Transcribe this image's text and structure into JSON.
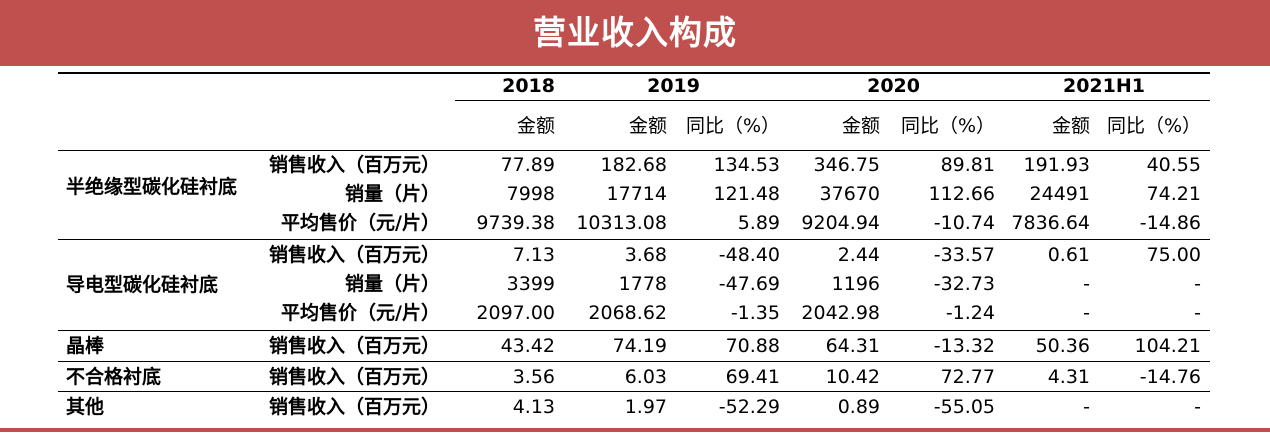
{
  "title": "营业收入构成",
  "years": [
    "2018",
    "2019",
    "2020",
    "2021H1"
  ],
  "sub_headers": {
    "amount": "金额",
    "yoy": "同比（%）"
  },
  "groups": [
    {
      "name": "半绝缘型碳化硅衬底",
      "rows": [
        {
          "metric": "销售收入（百万元）",
          "v2018": "77.89",
          "v2019": "182.68",
          "yoy2019": "134.53",
          "v2020": "346.75",
          "yoy2020": "89.81",
          "v2021": "191.93",
          "yoy2021": "40.55"
        },
        {
          "metric": "销量（片）",
          "v2018": "7998",
          "v2019": "17714",
          "yoy2019": "121.48",
          "v2020": "37670",
          "yoy2020": "112.66",
          "v2021": "24491",
          "yoy2021": "74.21"
        },
        {
          "metric": "平均售价（元/片）",
          "v2018": "9739.38",
          "v2019": "10313.08",
          "yoy2019": "5.89",
          "v2020": "9204.94",
          "yoy2020": "-10.74",
          "v2021": "7836.64",
          "yoy2021": "-14.86"
        }
      ]
    },
    {
      "name": "导电型碳化硅衬底",
      "rows": [
        {
          "metric": "销售收入（百万元）",
          "v2018": "7.13",
          "v2019": "3.68",
          "yoy2019": "-48.40",
          "v2020": "2.44",
          "yoy2020": "-33.57",
          "v2021": "0.61",
          "yoy2021": "75.00"
        },
        {
          "metric": "销量（片）",
          "v2018": "3399",
          "v2019": "1778",
          "yoy2019": "-47.69",
          "v2020": "1196",
          "yoy2020": "-32.73",
          "v2021": "-",
          "yoy2021": "-"
        },
        {
          "metric": "平均售价（元/片）",
          "v2018": "2097.00",
          "v2019": "2068.62",
          "yoy2019": "-1.35",
          "v2020": "2042.98",
          "yoy2020": "-1.24",
          "v2021": "-",
          "yoy2021": "-"
        }
      ]
    },
    {
      "name": "晶棒",
      "rows": [
        {
          "metric": "销售收入（百万元）",
          "v2018": "43.42",
          "v2019": "74.19",
          "yoy2019": "70.88",
          "v2020": "64.31",
          "yoy2020": "-13.32",
          "v2021": "50.36",
          "yoy2021": "104.21"
        }
      ]
    },
    {
      "name": "不合格衬底",
      "rows": [
        {
          "metric": "销售收入（百万元）",
          "v2018": "3.56",
          "v2019": "6.03",
          "yoy2019": "69.41",
          "v2020": "10.42",
          "yoy2020": "72.77",
          "v2021": "4.31",
          "yoy2021": "-14.76"
        }
      ]
    },
    {
      "name": "其他",
      "rows": [
        {
          "metric": "销售收入（百万元）",
          "v2018": "4.13",
          "v2019": "1.97",
          "yoy2019": "-52.29",
          "v2020": "0.89",
          "yoy2020": "-55.05",
          "v2021": "-",
          "yoy2021": "-"
        }
      ]
    }
  ]
}
